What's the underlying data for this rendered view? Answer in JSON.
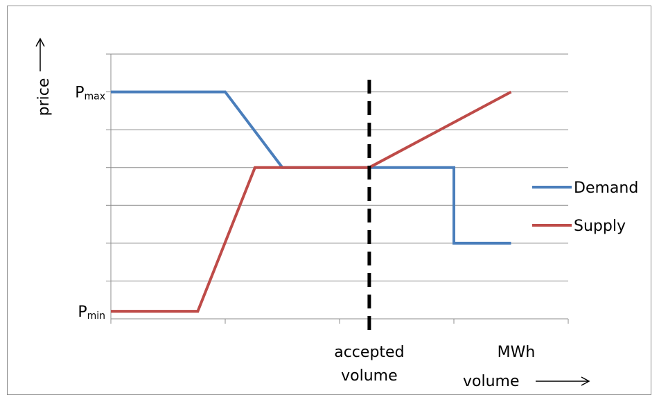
{
  "chart_data": {
    "type": "line",
    "title": "",
    "xlabel": "volume",
    "xlabel_unit": "MWh",
    "ylabel": "price",
    "ylim": [
      0,
      7
    ],
    "xlim": [
      0,
      4
    ],
    "grid": true,
    "legend_position": "right",
    "y_tick_labels": [
      {
        "base": "P",
        "sub": "max",
        "y": 6
      },
      {
        "base": "P",
        "sub": "min",
        "y": 0.2
      }
    ],
    "series": [
      {
        "name": "Demand",
        "color": "#4a7ebb",
        "points": [
          [
            0,
            6
          ],
          [
            1,
            6
          ],
          [
            1.5,
            4
          ],
          [
            3,
            4
          ],
          [
            3,
            2
          ],
          [
            3.5,
            2
          ]
        ]
      },
      {
        "name": "Supply",
        "color": "#be4b48",
        "points": [
          [
            0,
            0.2
          ],
          [
            0.76,
            0.2
          ],
          [
            1.26,
            4
          ],
          [
            2.26,
            4
          ],
          [
            3.5,
            6
          ]
        ]
      }
    ],
    "annotations": [
      {
        "kind": "vertical-dashed-line",
        "x": 2.26,
        "label_lines": [
          "accepted",
          "volume"
        ]
      }
    ]
  }
}
